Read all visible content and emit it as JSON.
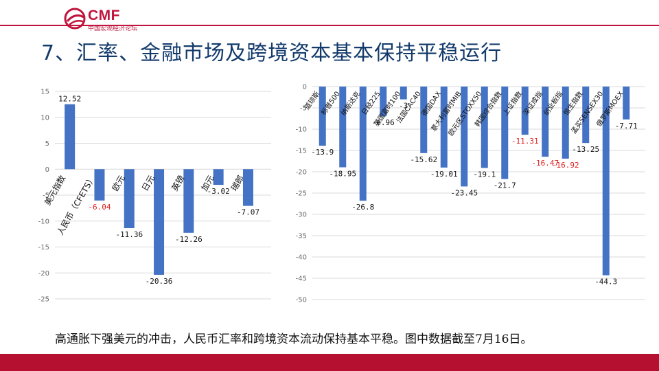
{
  "header": {
    "logo_name": "CMF",
    "logo_sub": "中国宏观经济论坛",
    "title": "7、汇率、金融市场及跨境资本基本保持平稳运行"
  },
  "footer": {
    "caption": "高通胀下强美元的冲击，人民币汇率和跨境资本流动保持基本平稳。图中数据截至7月16日。"
  },
  "colors": {
    "bar": "#4472c4",
    "brand": "#c0143c",
    "highlight": "#e02020",
    "grid": "#d9d9d9"
  },
  "chart_data": [
    {
      "type": "bar",
      "categories": [
        "美元指数",
        "人民币（CFETS）",
        "欧元",
        "日元",
        "英镑",
        "加元",
        "瑞郎"
      ],
      "values": [
        12.52,
        -6.04,
        -11.36,
        -20.36,
        -12.26,
        -3.02,
        -7.07
      ],
      "data_labels": [
        "12.52",
        "-6.04",
        "-11.36",
        "-20.36",
        "-12.26",
        "-3.02",
        "-7.07"
      ],
      "highlight_index": [
        1
      ],
      "ylim": [
        -25,
        15
      ],
      "yticks": [
        15,
        10,
        5,
        0,
        -5,
        -10,
        -15,
        -20,
        -25
      ],
      "ytick_labels": [
        "15",
        "10",
        "5",
        "0",
        "-5",
        "-10",
        "-15",
        "-20",
        "-25"
      ],
      "grid": true
    },
    {
      "type": "bar",
      "categories": [
        "道琼斯",
        "标普500",
        "纳斯达克",
        "日经225",
        "英国富时100",
        "法国CAC40",
        "德国DAX",
        "意大利富时MIB",
        "欧元区STOXX50",
        "韩国综合指数",
        "上证指数",
        "深证成指",
        "创业板指",
        "恒生指数",
        "孟买SENSEX30",
        "俄罗斯MOEX"
      ],
      "values": [
        -13.9,
        -18.95,
        -26.8,
        -6.96,
        -3.0,
        -15.62,
        -19.01,
        -23.45,
        -19.1,
        -21.7,
        -11.31,
        -16.47,
        -16.92,
        -13.25,
        -44.3,
        -7.71
      ],
      "data_labels": [
        "-13.9",
        "-18.95",
        "-26.8",
        "-6.96",
        "-3",
        "-15.62",
        "-19.01",
        "-23.45",
        "-19.1",
        "-21.7",
        "-11.31",
        "-16.47",
        "-16.92",
        "-13.25",
        "-44.3",
        "-7.71"
      ],
      "highlight_index": [
        10,
        11,
        12
      ],
      "ylim": [
        -50,
        0
      ],
      "yticks": [
        0,
        -5,
        -10,
        -15,
        -20,
        -25,
        -30,
        -35,
        -40,
        -45,
        -50
      ],
      "ytick_labels": [
        "0",
        "-5",
        "-10",
        "-15",
        "-20",
        "-25",
        "-30",
        "-35",
        "-40",
        "-45",
        "-50"
      ],
      "grid": true
    }
  ]
}
